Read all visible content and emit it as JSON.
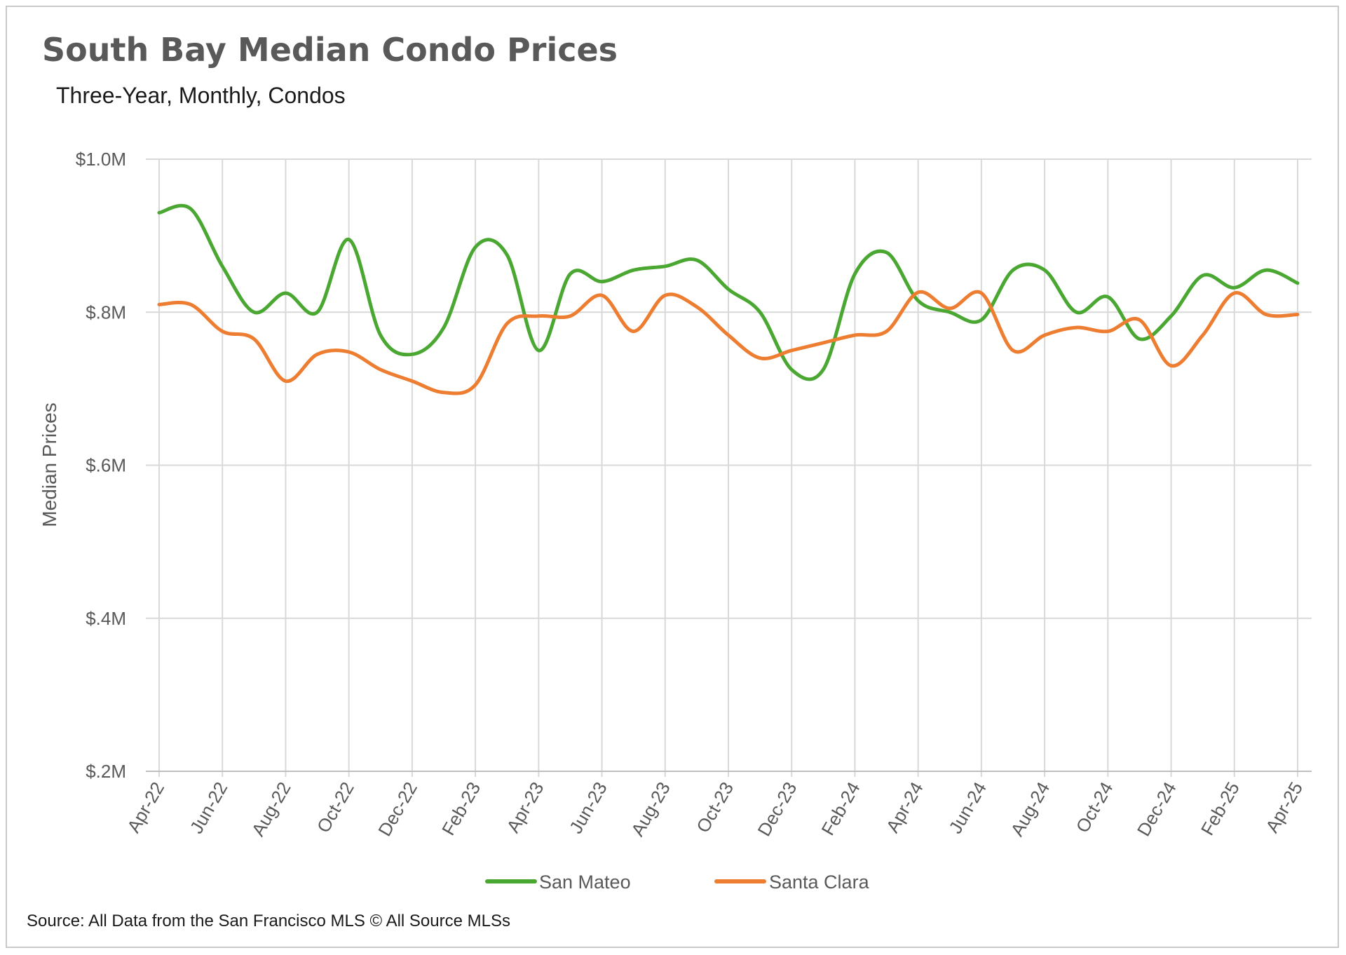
{
  "chart_data": {
    "type": "line",
    "title": "South Bay Median Condo Prices",
    "subtitle": "Three-Year, Monthly, Condos",
    "ylabel": "Median Prices",
    "xlabel": "",
    "ylim": [
      0.2,
      1.0
    ],
    "yticks": [
      {
        "value": 1.0,
        "label": "$1.0M"
      },
      {
        "value": 0.8,
        "label": "$.8M"
      },
      {
        "value": 0.6,
        "label": "$.6M"
      },
      {
        "value": 0.4,
        "label": "$.4M"
      },
      {
        "value": 0.2,
        "label": "$.2M"
      }
    ],
    "x": [
      "Apr-22",
      "May-22",
      "Jun-22",
      "Jul-22",
      "Aug-22",
      "Sep-22",
      "Oct-22",
      "Nov-22",
      "Dec-22",
      "Jan-23",
      "Feb-23",
      "Mar-23",
      "Apr-23",
      "May-23",
      "Jun-23",
      "Jul-23",
      "Aug-23",
      "Sep-23",
      "Oct-23",
      "Nov-23",
      "Dec-23",
      "Jan-24",
      "Feb-24",
      "Mar-24",
      "Apr-24",
      "May-24",
      "Jun-24",
      "Jul-24",
      "Aug-24",
      "Sep-24",
      "Oct-24",
      "Nov-24",
      "Dec-24",
      "Jan-25",
      "Feb-25",
      "Mar-25",
      "Apr-25"
    ],
    "xtick_labels": [
      "Apr-22",
      "Jun-22",
      "Aug-22",
      "Oct-22",
      "Dec-22",
      "Feb-23",
      "Apr-23",
      "Jun-23",
      "Aug-23",
      "Oct-23",
      "Dec-23",
      "Feb-24",
      "Apr-24",
      "Jun-24",
      "Aug-24",
      "Oct-24",
      "Dec-24",
      "Feb-25",
      "Apr-25"
    ],
    "grid": true,
    "legend_position": "bottom",
    "series": [
      {
        "name": "San Mateo",
        "color": "#4aa832",
        "values": [
          0.93,
          0.935,
          0.86,
          0.8,
          0.825,
          0.8,
          0.895,
          0.77,
          0.745,
          0.78,
          0.885,
          0.875,
          0.75,
          0.85,
          0.84,
          0.855,
          0.86,
          0.868,
          0.83,
          0.8,
          0.725,
          0.725,
          0.85,
          0.878,
          0.815,
          0.8,
          0.79,
          0.855,
          0.855,
          0.8,
          0.82,
          0.765,
          0.795,
          0.848,
          0.832,
          0.855,
          0.838
        ]
      },
      {
        "name": "Santa Clara",
        "color": "#ed7d31",
        "values": [
          0.81,
          0.81,
          0.775,
          0.765,
          0.71,
          0.745,
          0.748,
          0.725,
          0.71,
          0.695,
          0.705,
          0.785,
          0.795,
          0.795,
          0.822,
          0.775,
          0.822,
          0.807,
          0.77,
          0.74,
          0.75,
          0.76,
          0.77,
          0.775,
          0.826,
          0.805,
          0.825,
          0.75,
          0.77,
          0.78,
          0.775,
          0.79,
          0.73,
          0.77,
          0.825,
          0.797,
          0.797
        ]
      }
    ]
  },
  "footer": {
    "source": "Source: All Data from the San Francisco MLS © All Source MLSs"
  }
}
